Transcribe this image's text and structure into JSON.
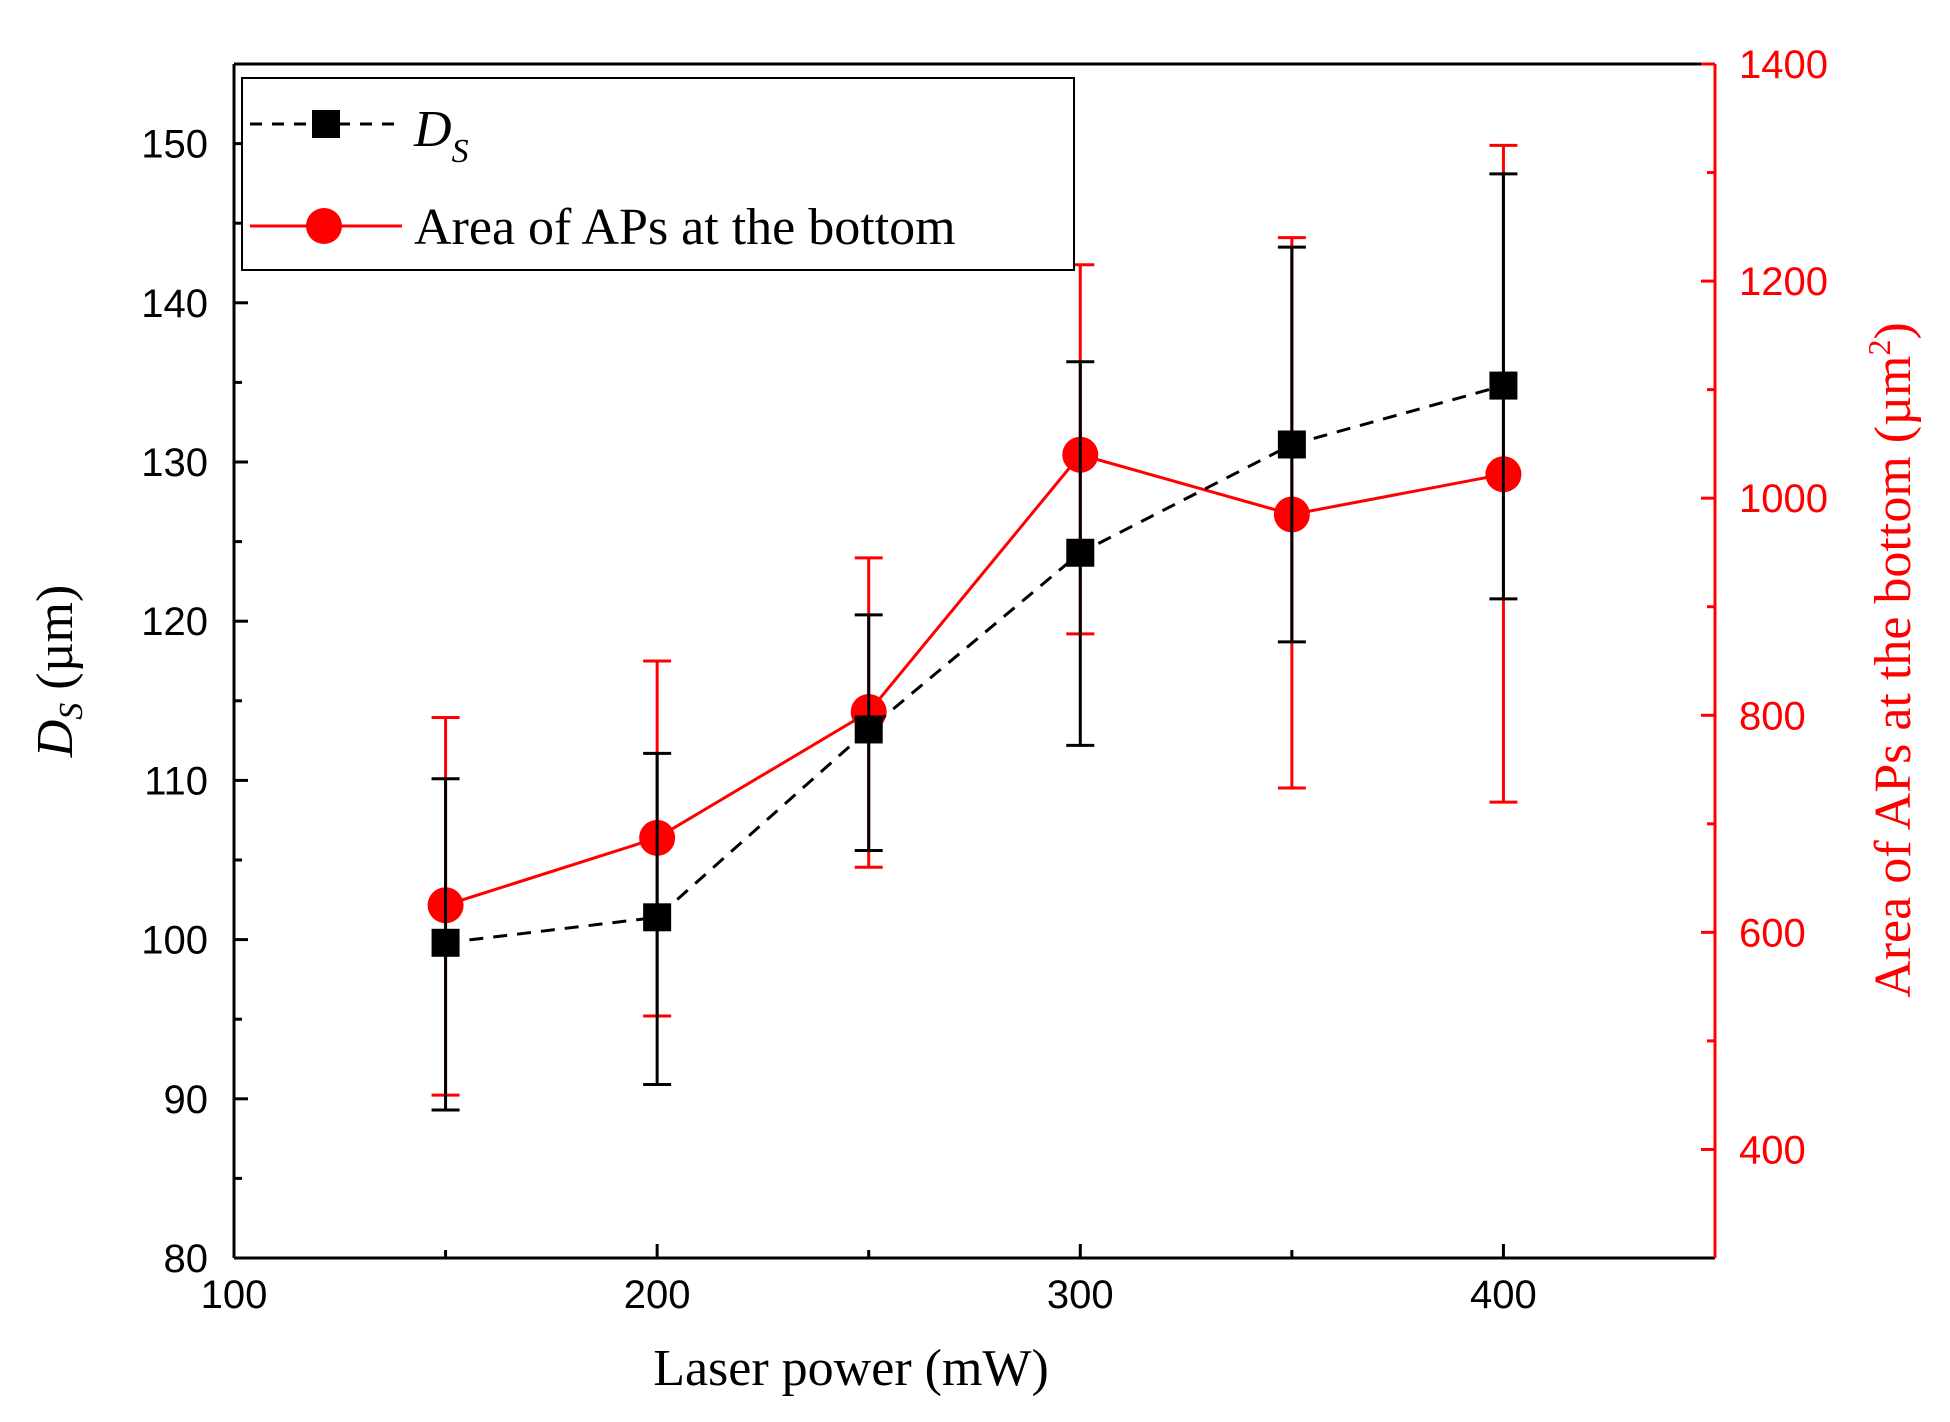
{
  "chart_data": {
    "type": "line",
    "title": "",
    "xlabel": "Laser power (mW)",
    "ylabel_left": {
      "main": "D",
      "sub": "S",
      "unit": " (µm)"
    },
    "ylabel_right": {
      "main": "Area of APs at the bottom (µm",
      "sup": "2",
      "close": ")"
    },
    "xlim": [
      100,
      450
    ],
    "ylim_left": [
      80,
      155
    ],
    "ylim_right": [
      300,
      1400
    ],
    "x_ticks": [
      100,
      200,
      300,
      400
    ],
    "x_tick_labels": [
      "100",
      "200",
      "300",
      "400"
    ],
    "y_left_ticks": [
      80,
      90,
      100,
      110,
      120,
      130,
      140,
      150
    ],
    "y_left_tick_labels": [
      "80",
      "90",
      "100",
      "110",
      "120",
      "130",
      "140",
      "150"
    ],
    "y_right_ticks": [
      400,
      600,
      800,
      1000,
      1200,
      1400
    ],
    "y_right_tick_labels": [
      "400",
      "600",
      "800",
      "1000",
      "1200",
      "1400"
    ],
    "grid": false,
    "legend_position": "top-left",
    "series": [
      {
        "name": "D_S",
        "legend_main": "D",
        "legend_sub": "S",
        "axis": "left",
        "color": "#000000",
        "marker": "square",
        "line_style": "dashed",
        "x": [
          150,
          200,
          250,
          300,
          350,
          400
        ],
        "y": [
          99.8,
          101.4,
          113.2,
          124.3,
          131.1,
          134.8
        ],
        "err_low": [
          89.3,
          90.9,
          105.6,
          112.2,
          118.7,
          121.4
        ],
        "err_high": [
          110.1,
          111.7,
          120.4,
          136.3,
          143.5,
          148.1
        ]
      },
      {
        "name": "Area of APs at the bottom",
        "legend_label": "Area of APs at the bottom",
        "axis": "right",
        "color": "#ff0000",
        "marker": "circle",
        "line_style": "solid",
        "x": [
          150,
          200,
          250,
          300,
          350,
          400
        ],
        "y": [
          625,
          687,
          803,
          1040,
          985,
          1022
        ],
        "err_low": [
          450,
          523,
          660,
          875,
          733,
          720
        ],
        "err_high": [
          798,
          850,
          945,
          1215,
          1240,
          1325
        ]
      }
    ]
  }
}
